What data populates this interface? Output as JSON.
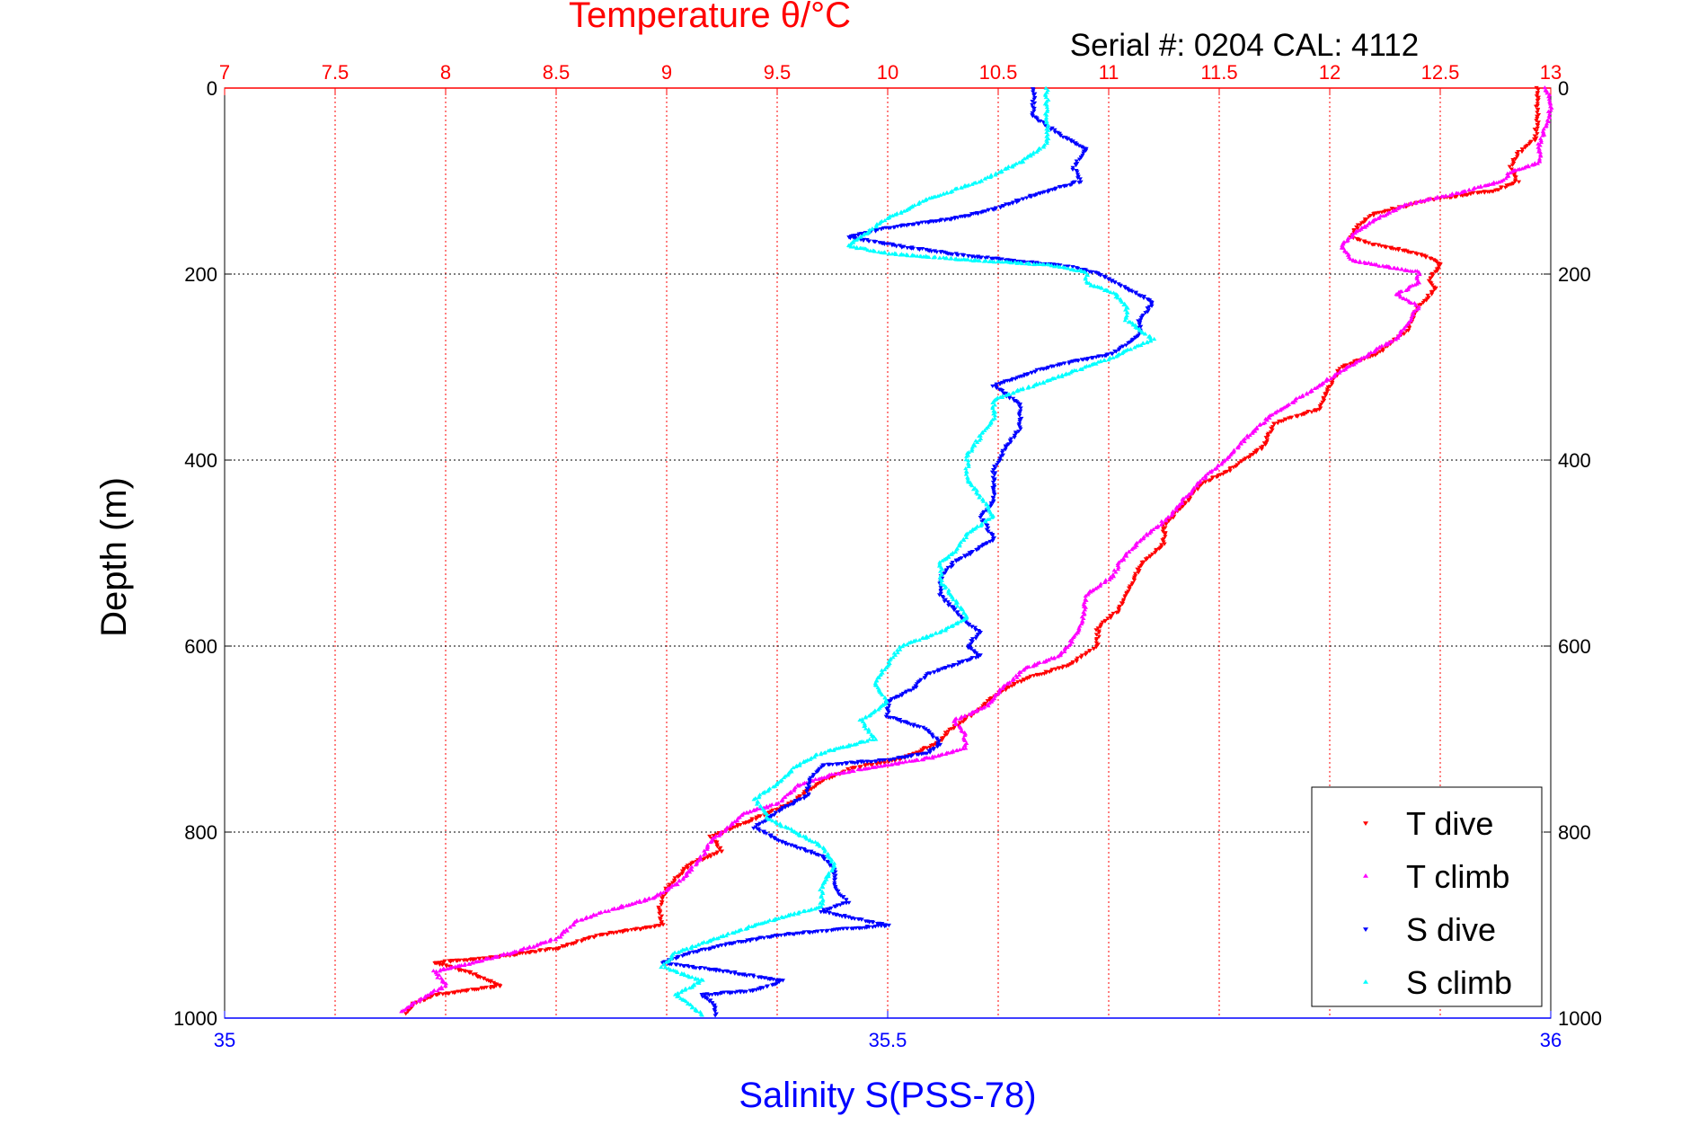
{
  "chart_data": {
    "type": "scatter",
    "title": "Temperature θ/°C",
    "subtitle": "Serial #: 0204  CAL: 4112",
    "ylabel": "Depth (m)",
    "xlabel": "Salinity S(PSS-78)",
    "ylim": [
      0,
      1000
    ],
    "y_inverted": true,
    "y_ticks": [
      "0",
      "200",
      "400",
      "600",
      "800",
      "1000"
    ],
    "temp_axis": {
      "position": "top",
      "range": [
        7,
        13
      ],
      "color": "#ff0000",
      "ticks": [
        "7",
        "7.5",
        "8",
        "8.5",
        "9",
        "9.5",
        "10",
        "10.5",
        "11",
        "11.5",
        "12",
        "12.5",
        "13"
      ]
    },
    "sal_axis": {
      "position": "bottom",
      "range": [
        35,
        36
      ],
      "color": "#0000ff",
      "ticks": [
        "35",
        "35.5",
        "36"
      ]
    },
    "grid": true,
    "legend": {
      "position": "bottom-right"
    },
    "series": [
      {
        "name": "T dive",
        "axis": "temp",
        "color": "#ff0000",
        "marker": "triangle-down",
        "points": [
          [
            12.94,
            0
          ],
          [
            12.94,
            30
          ],
          [
            12.93,
            55
          ],
          [
            12.85,
            70
          ],
          [
            12.82,
            85
          ],
          [
            12.85,
            100
          ],
          [
            12.75,
            110
          ],
          [
            12.45,
            120
          ],
          [
            12.2,
            135
          ],
          [
            12.12,
            150
          ],
          [
            12.1,
            160
          ],
          [
            12.2,
            168
          ],
          [
            12.35,
            175
          ],
          [
            12.45,
            182
          ],
          [
            12.5,
            190
          ],
          [
            12.45,
            205
          ],
          [
            12.48,
            215
          ],
          [
            12.4,
            235
          ],
          [
            12.35,
            260
          ],
          [
            12.22,
            285
          ],
          [
            12.05,
            300
          ],
          [
            12.0,
            320
          ],
          [
            11.95,
            345
          ],
          [
            11.75,
            360
          ],
          [
            11.7,
            385
          ],
          [
            11.55,
            410
          ],
          [
            11.42,
            425
          ],
          [
            11.35,
            445
          ],
          [
            11.25,
            470
          ],
          [
            11.25,
            490
          ],
          [
            11.15,
            510
          ],
          [
            11.1,
            535
          ],
          [
            11.05,
            560
          ],
          [
            10.95,
            580
          ],
          [
            10.95,
            600
          ],
          [
            10.82,
            620
          ],
          [
            10.62,
            635
          ],
          [
            10.5,
            650
          ],
          [
            10.4,
            670
          ],
          [
            10.28,
            690
          ],
          [
            10.22,
            705
          ],
          [
            10.12,
            715
          ],
          [
            10.05,
            722
          ],
          [
            9.85,
            730
          ],
          [
            9.7,
            745
          ],
          [
            9.55,
            770
          ],
          [
            9.35,
            790
          ],
          [
            9.2,
            805
          ],
          [
            9.25,
            820
          ],
          [
            9.1,
            835
          ],
          [
            9.0,
            860
          ],
          [
            8.97,
            880
          ],
          [
            8.98,
            900
          ],
          [
            8.7,
            910
          ],
          [
            8.5,
            925
          ],
          [
            8.2,
            935
          ],
          [
            7.95,
            940
          ],
          [
            8.1,
            950
          ],
          [
            8.25,
            965
          ],
          [
            7.95,
            975
          ],
          [
            7.85,
            985
          ],
          [
            7.82,
            995
          ]
        ]
      },
      {
        "name": "T climb",
        "axis": "temp",
        "color": "#ff00ff",
        "marker": "triangle-up",
        "points": [
          [
            12.98,
            0
          ],
          [
            13.0,
            20
          ],
          [
            12.98,
            40
          ],
          [
            12.95,
            60
          ],
          [
            12.95,
            80
          ],
          [
            12.82,
            90
          ],
          [
            12.78,
            100
          ],
          [
            12.6,
            112
          ],
          [
            12.35,
            125
          ],
          [
            12.22,
            140
          ],
          [
            12.12,
            155
          ],
          [
            12.05,
            170
          ],
          [
            12.1,
            185
          ],
          [
            12.2,
            190
          ],
          [
            12.4,
            198
          ],
          [
            12.4,
            210
          ],
          [
            12.3,
            222
          ],
          [
            12.4,
            235
          ],
          [
            12.35,
            255
          ],
          [
            12.3,
            270
          ],
          [
            12.15,
            290
          ],
          [
            11.95,
            320
          ],
          [
            11.75,
            350
          ],
          [
            11.65,
            370
          ],
          [
            11.55,
            395
          ],
          [
            11.45,
            415
          ],
          [
            11.35,
            440
          ],
          [
            11.28,
            460
          ],
          [
            11.15,
            485
          ],
          [
            11.05,
            510
          ],
          [
            11.02,
            525
          ],
          [
            10.9,
            545
          ],
          [
            10.88,
            575
          ],
          [
            10.82,
            600
          ],
          [
            10.78,
            610
          ],
          [
            10.62,
            625
          ],
          [
            10.5,
            650
          ],
          [
            10.45,
            665
          ],
          [
            10.3,
            680
          ],
          [
            10.35,
            695
          ],
          [
            10.35,
            710
          ],
          [
            10.2,
            720
          ],
          [
            10.0,
            728
          ],
          [
            9.75,
            738
          ],
          [
            9.6,
            750
          ],
          [
            9.5,
            770
          ],
          [
            9.35,
            780
          ],
          [
            9.28,
            795
          ],
          [
            9.2,
            810
          ],
          [
            9.15,
            830
          ],
          [
            9.05,
            855
          ],
          [
            8.95,
            870
          ],
          [
            8.8,
            880
          ],
          [
            8.6,
            895
          ],
          [
            8.5,
            915
          ],
          [
            8.3,
            930
          ],
          [
            8.1,
            942
          ],
          [
            7.95,
            950
          ],
          [
            8.0,
            965
          ],
          [
            7.85,
            985
          ],
          [
            7.8,
            993
          ]
        ]
      },
      {
        "name": "S dive",
        "axis": "sal",
        "color": "#0000ff",
        "marker": "triangle-down",
        "points": [
          [
            35.61,
            0
          ],
          [
            35.61,
            30
          ],
          [
            35.63,
            50
          ],
          [
            35.65,
            65
          ],
          [
            35.64,
            85
          ],
          [
            35.645,
            100
          ],
          [
            35.61,
            115
          ],
          [
            35.58,
            130
          ],
          [
            35.55,
            140
          ],
          [
            35.5,
            150
          ],
          [
            35.47,
            160
          ],
          [
            35.51,
            170
          ],
          [
            35.56,
            180
          ],
          [
            35.64,
            192
          ],
          [
            35.66,
            200
          ],
          [
            35.68,
            215
          ],
          [
            35.7,
            230
          ],
          [
            35.69,
            250
          ],
          [
            35.69,
            265
          ],
          [
            35.67,
            285
          ],
          [
            35.62,
            300
          ],
          [
            35.6,
            310
          ],
          [
            35.58,
            320
          ],
          [
            35.6,
            340
          ],
          [
            35.6,
            365
          ],
          [
            35.59,
            385
          ],
          [
            35.58,
            410
          ],
          [
            35.58,
            430
          ],
          [
            35.58,
            445
          ],
          [
            35.57,
            460
          ],
          [
            35.58,
            485
          ],
          [
            35.55,
            510
          ],
          [
            35.54,
            525
          ],
          [
            35.54,
            545
          ],
          [
            35.55,
            560
          ],
          [
            35.56,
            575
          ],
          [
            35.57,
            585
          ],
          [
            35.56,
            600
          ],
          [
            35.57,
            610
          ],
          [
            35.53,
            630
          ],
          [
            35.52,
            645
          ],
          [
            35.5,
            660
          ],
          [
            35.5,
            675
          ],
          [
            35.53,
            690
          ],
          [
            35.54,
            705
          ],
          [
            35.53,
            715
          ],
          [
            35.5,
            722
          ],
          [
            35.45,
            728
          ],
          [
            35.44,
            745
          ],
          [
            35.44,
            760
          ],
          [
            35.42,
            775
          ],
          [
            35.4,
            795
          ],
          [
            35.42,
            810
          ],
          [
            35.45,
            825
          ],
          [
            35.46,
            840
          ],
          [
            35.46,
            860
          ],
          [
            35.47,
            875
          ],
          [
            35.45,
            885
          ],
          [
            35.5,
            900
          ],
          [
            35.42,
            910
          ],
          [
            35.38,
            920
          ],
          [
            35.35,
            930
          ],
          [
            35.33,
            940
          ],
          [
            35.38,
            950
          ],
          [
            35.42,
            960
          ],
          [
            35.4,
            970
          ],
          [
            35.36,
            975
          ],
          [
            35.37,
            985
          ],
          [
            35.37,
            997
          ]
        ]
      },
      {
        "name": "S climb",
        "axis": "sal",
        "color": "#00ffff",
        "marker": "triangle-up",
        "points": [
          [
            35.62,
            0
          ],
          [
            35.62,
            40
          ],
          [
            35.62,
            60
          ],
          [
            35.6,
            80
          ],
          [
            35.57,
            100
          ],
          [
            35.53,
            120
          ],
          [
            35.5,
            140
          ],
          [
            35.48,
            160
          ],
          [
            35.47,
            170
          ],
          [
            35.5,
            178
          ],
          [
            35.56,
            185
          ],
          [
            35.62,
            190
          ],
          [
            35.65,
            198
          ],
          [
            35.65,
            210
          ],
          [
            35.67,
            220
          ],
          [
            35.68,
            235
          ],
          [
            35.68,
            250
          ],
          [
            35.7,
            270
          ],
          [
            35.67,
            290
          ],
          [
            35.64,
            305
          ],
          [
            35.61,
            320
          ],
          [
            35.58,
            335
          ],
          [
            35.58,
            355
          ],
          [
            35.57,
            375
          ],
          [
            35.56,
            395
          ],
          [
            35.56,
            420
          ],
          [
            35.57,
            440
          ],
          [
            35.58,
            460
          ],
          [
            35.56,
            480
          ],
          [
            35.55,
            500
          ],
          [
            35.54,
            510
          ],
          [
            35.54,
            530
          ],
          [
            35.55,
            550
          ],
          [
            35.56,
            570
          ],
          [
            35.54,
            585
          ],
          [
            35.51,
            600
          ],
          [
            35.5,
            620
          ],
          [
            35.49,
            640
          ],
          [
            35.5,
            660
          ],
          [
            35.48,
            680
          ],
          [
            35.49,
            700
          ],
          [
            35.45,
            715
          ],
          [
            35.43,
            730
          ],
          [
            35.42,
            745
          ],
          [
            35.4,
            765
          ],
          [
            35.41,
            785
          ],
          [
            35.43,
            800
          ],
          [
            35.45,
            815
          ],
          [
            35.46,
            835
          ],
          [
            35.45,
            860
          ],
          [
            35.45,
            880
          ],
          [
            35.4,
            900
          ],
          [
            35.37,
            915
          ],
          [
            35.34,
            930
          ],
          [
            35.33,
            945
          ],
          [
            35.36,
            960
          ],
          [
            35.34,
            975
          ],
          [
            35.35,
            985
          ],
          [
            35.36,
            997
          ]
        ]
      }
    ]
  }
}
